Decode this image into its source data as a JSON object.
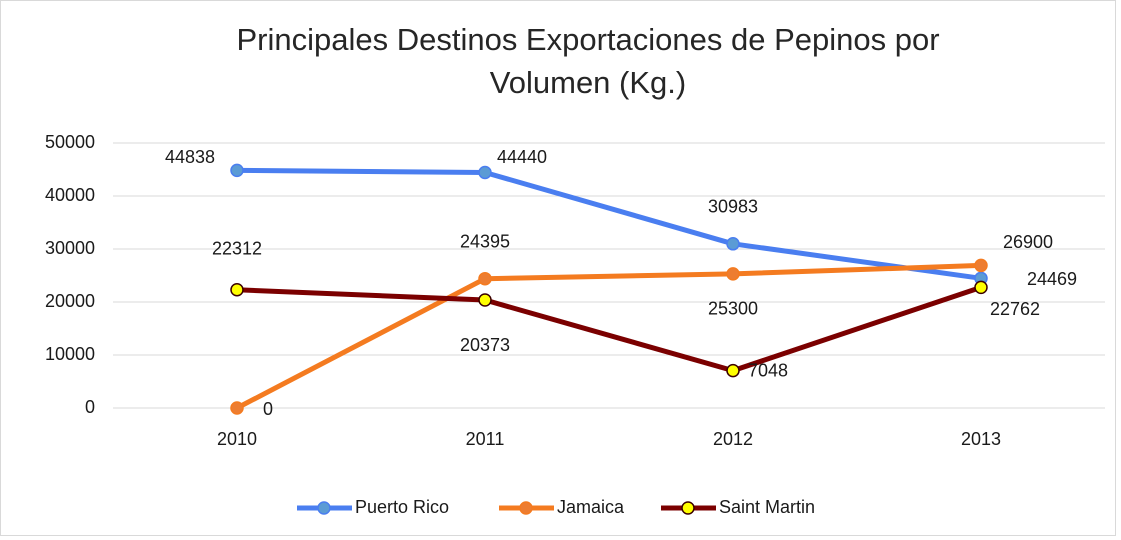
{
  "chart_data": {
    "type": "line",
    "title": "Principales Destinos Exportaciones de Pepinos por Volumen (Kg.)",
    "categories": [
      "2010",
      "2011",
      "2012",
      "2013"
    ],
    "series": [
      {
        "name": "Puerto Rico",
        "color": "#4a7ef0",
        "marker_color": "#5b9bd5",
        "values": [
          44838,
          44440,
          30983,
          24469
        ]
      },
      {
        "name": "Jamaica",
        "color": "#f47b20",
        "marker_color": "#ed7d31",
        "values": [
          0,
          24395,
          25300,
          26900
        ]
      },
      {
        "name": "Saint Martin",
        "color": "#7b0000",
        "marker_color": "#ffff00",
        "values": [
          22312,
          20373,
          7048,
          22762
        ]
      }
    ],
    "ylim": [
      0,
      50000
    ],
    "yticks": [
      0,
      10000,
      20000,
      30000,
      40000,
      50000
    ],
    "grid": true,
    "legend": "bottom"
  }
}
